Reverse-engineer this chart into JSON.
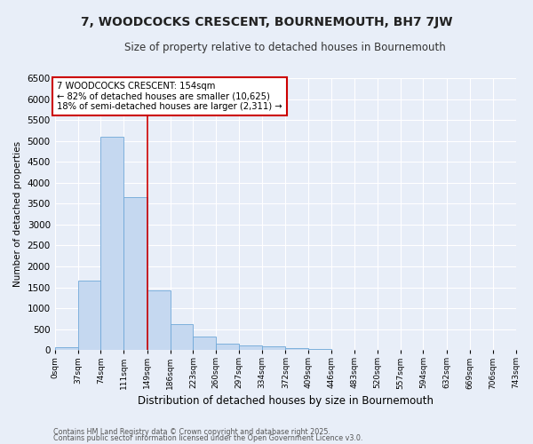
{
  "title": "7, WOODCOCKS CRESCENT, BOURNEMOUTH, BH7 7JW",
  "subtitle": "Size of property relative to detached houses in Bournemouth",
  "xlabel": "Distribution of detached houses by size in Bournemouth",
  "ylabel": "Number of detached properties",
  "bar_edges": [
    0,
    37,
    74,
    111,
    149,
    186,
    223,
    260,
    297,
    334,
    372,
    409,
    446,
    483,
    520,
    557,
    594,
    632,
    669,
    706,
    743
  ],
  "bar_heights": [
    60,
    1660,
    5100,
    3660,
    1430,
    620,
    320,
    155,
    120,
    95,
    40,
    25,
    0,
    0,
    0,
    0,
    0,
    0,
    0,
    0
  ],
  "bar_color": "#c5d8f0",
  "bar_edgecolor": "#6fa8d8",
  "property_line_x": 149,
  "annotation_title": "7 WOODCOCKS CRESCENT: 154sqm",
  "annotation_line1": "← 82% of detached houses are smaller (10,625)",
  "annotation_line2": "18% of semi-detached houses are larger (2,311) →",
  "annotation_box_facecolor": "#ffffff",
  "annotation_box_edgecolor": "#cc0000",
  "vline_color": "#cc0000",
  "background_color": "#e8eef8",
  "grid_color": "#ffffff",
  "tick_labels": [
    "0sqm",
    "37sqm",
    "74sqm",
    "111sqm",
    "149sqm",
    "186sqm",
    "223sqm",
    "260sqm",
    "297sqm",
    "334sqm",
    "372sqm",
    "409sqm",
    "446sqm",
    "483sqm",
    "520sqm",
    "557sqm",
    "594sqm",
    "632sqm",
    "669sqm",
    "706sqm",
    "743sqm"
  ],
  "yticks": [
    0,
    500,
    1000,
    1500,
    2000,
    2500,
    3000,
    3500,
    4000,
    4500,
    5000,
    5500,
    6000,
    6500
  ],
  "ylim": [
    0,
    6500
  ],
  "footnote1": "Contains HM Land Registry data © Crown copyright and database right 2025.",
  "footnote2": "Contains public sector information licensed under the Open Government Licence v3.0."
}
